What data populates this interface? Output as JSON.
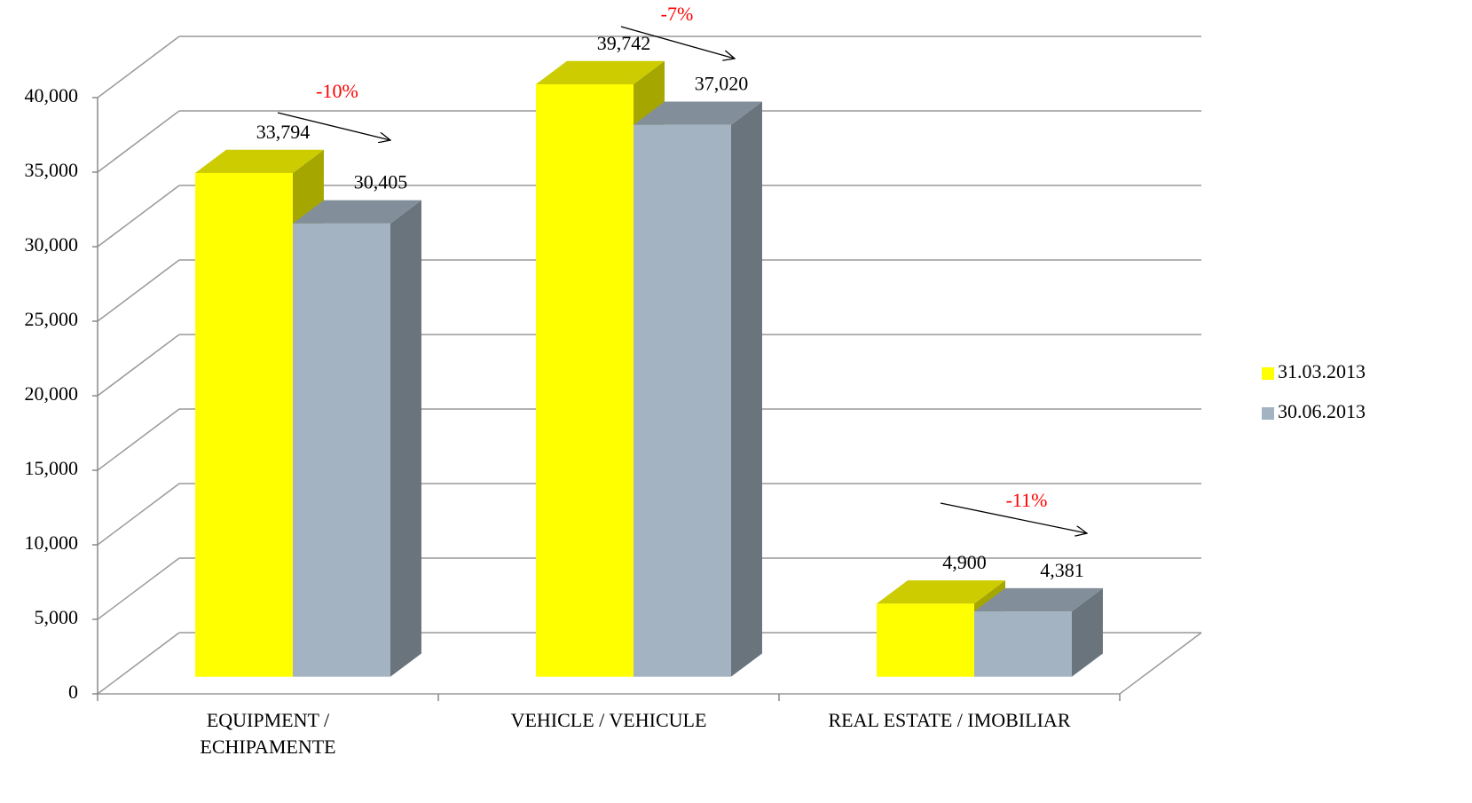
{
  "chart_data": {
    "type": "bar3d",
    "categories": [
      "EQUIPMENT / ECHIPAMENTE",
      "VEHICLE / VEHICULE",
      "REAL ESTATE / IMOBILIAR"
    ],
    "series": [
      {
        "name": "31.03.2013",
        "color": "#ffff00",
        "values": [
          33794,
          39742,
          4900
        ],
        "value_labels": [
          "33,794",
          "39,742",
          "4,900"
        ]
      },
      {
        "name": "30.06.2013",
        "color": "#a3b3c1",
        "values": [
          30405,
          37020,
          4381
        ],
        "value_labels": [
          "30,405",
          "37,020",
          "4,381"
        ]
      }
    ],
    "annotations": [
      "-10%",
      "-7%",
      "-11%"
    ],
    "ylim": [
      0,
      40000
    ],
    "yticks": [
      0,
      {
        "value": 5000,
        "label": "5,000"
      },
      {
        "value": 10000,
        "label": "10,000"
      },
      {
        "value": 15000,
        "label": "15,000"
      },
      {
        "value": 20000,
        "label": "20,000"
      },
      {
        "value": 25000,
        "label": "25,000"
      },
      {
        "value": 30000,
        "label": "30,000"
      },
      {
        "value": 35000,
        "label": "35,000"
      },
      {
        "value": 40000,
        "label": "40,000"
      }
    ],
    "grid": true,
    "legend": "right"
  }
}
